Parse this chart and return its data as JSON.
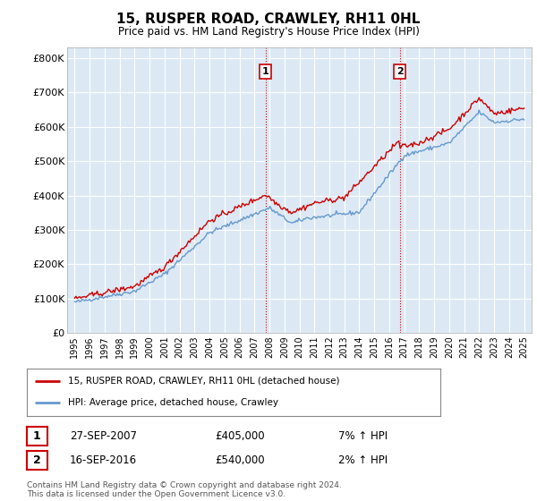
{
  "title": "15, RUSPER ROAD, CRAWLEY, RH11 0HL",
  "subtitle": "Price paid vs. HM Land Registry's House Price Index (HPI)",
  "ylabel_ticks": [
    "£0",
    "£100K",
    "£200K",
    "£300K",
    "£400K",
    "£500K",
    "£600K",
    "£700K",
    "£800K"
  ],
  "ytick_vals": [
    0,
    100000,
    200000,
    300000,
    400000,
    500000,
    600000,
    700000,
    800000
  ],
  "ylim": [
    0,
    830000
  ],
  "xlim_start": 1994.5,
  "xlim_end": 2025.5,
  "bg_color": "#dce9f5",
  "line1_color": "#cc0000",
  "line2_color": "#6699cc",
  "marker1_date_x": 2007.74,
  "marker1_y": 405000,
  "marker2_date_x": 2016.71,
  "marker2_y": 540000,
  "legend_label1": "15, RUSPER ROAD, CRAWLEY, RH11 0HL (detached house)",
  "legend_label2": "HPI: Average price, detached house, Crawley",
  "annotation1_date": "27-SEP-2007",
  "annotation1_price": "£405,000",
  "annotation1_hpi": "7% ↑ HPI",
  "annotation2_date": "16-SEP-2016",
  "annotation2_price": "£540,000",
  "annotation2_hpi": "2% ↑ HPI",
  "footer": "Contains HM Land Registry data © Crown copyright and database right 2024.\nThis data is licensed under the Open Government Licence v3.0."
}
